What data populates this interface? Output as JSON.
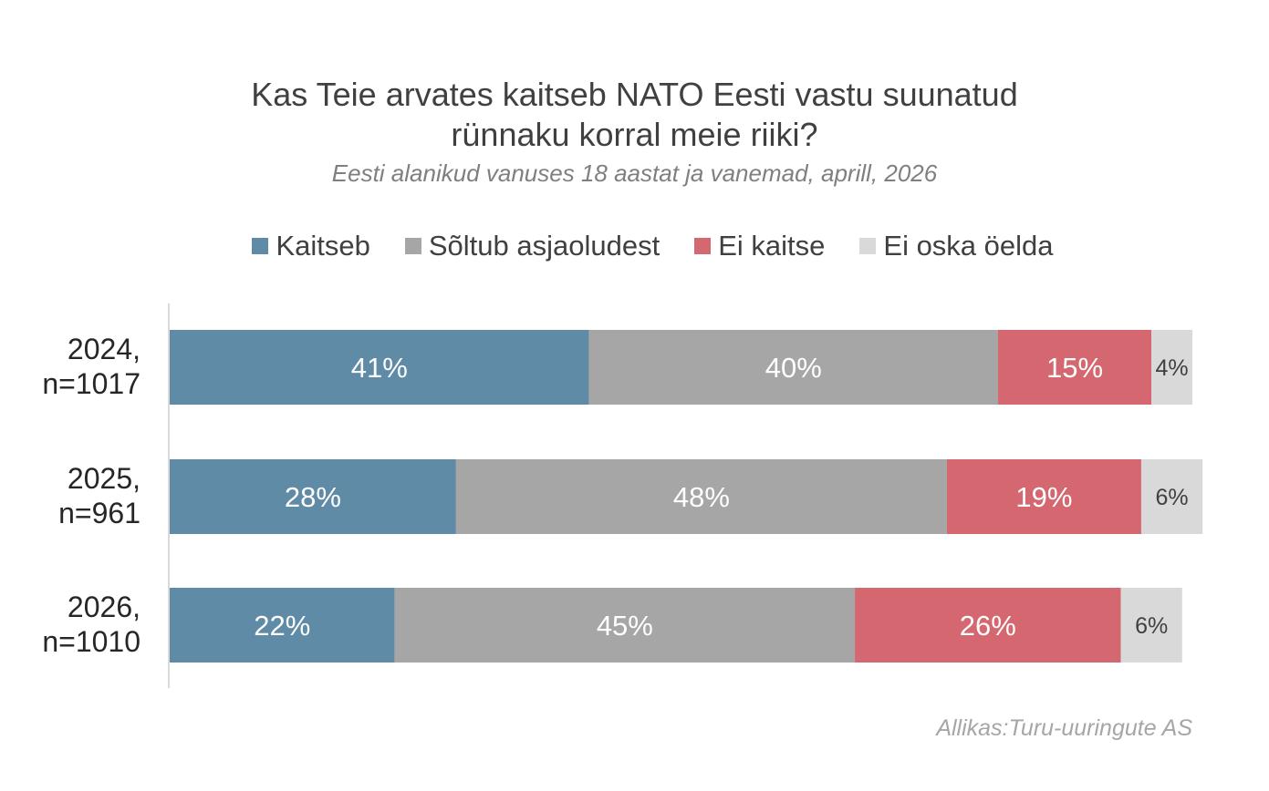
{
  "chart_data": {
    "type": "bar",
    "orientation": "horizontal",
    "stacked": true,
    "title_lines": [
      "Kas Teie arvates kaitseb NATO Eesti vastu suunatud",
      "rünnaku korral meie riiki?"
    ],
    "subtitle": "Eesti alanikud vanuses 18 aastat ja vanemad, aprill, 2026",
    "categories": [
      [
        "2024,",
        "n=1017"
      ],
      [
        "2025,",
        "n=961"
      ],
      [
        "2026,",
        "n=1010"
      ]
    ],
    "series": [
      {
        "name": "Kaitseb",
        "color": "#5f8ba6",
        "label_color": "#ffffff",
        "values": [
          41,
          28,
          22
        ],
        "labels": [
          "41%",
          "28%",
          "22%"
        ]
      },
      {
        "name": "Sõltub asjaoludest",
        "color": "#a6a6a6",
        "label_color": "#ffffff",
        "values": [
          40,
          48,
          45
        ],
        "labels": [
          "40%",
          "48%",
          "45%"
        ]
      },
      {
        "name": "Ei kaitse",
        "color": "#d4676f",
        "label_color": "#ffffff",
        "values": [
          15,
          19,
          26
        ],
        "labels": [
          "15%",
          "19%",
          "26%"
        ]
      },
      {
        "name": "Ei oska öelda",
        "color": "#d9d9d9",
        "label_color": "#404040",
        "values": [
          4,
          6,
          6
        ],
        "labels": [
          "4%",
          "6%",
          "6%"
        ]
      }
    ],
    "xlim": [
      0,
      100
    ],
    "legend_position": "top",
    "source": "Allikas:Turu-uuringute AS"
  }
}
